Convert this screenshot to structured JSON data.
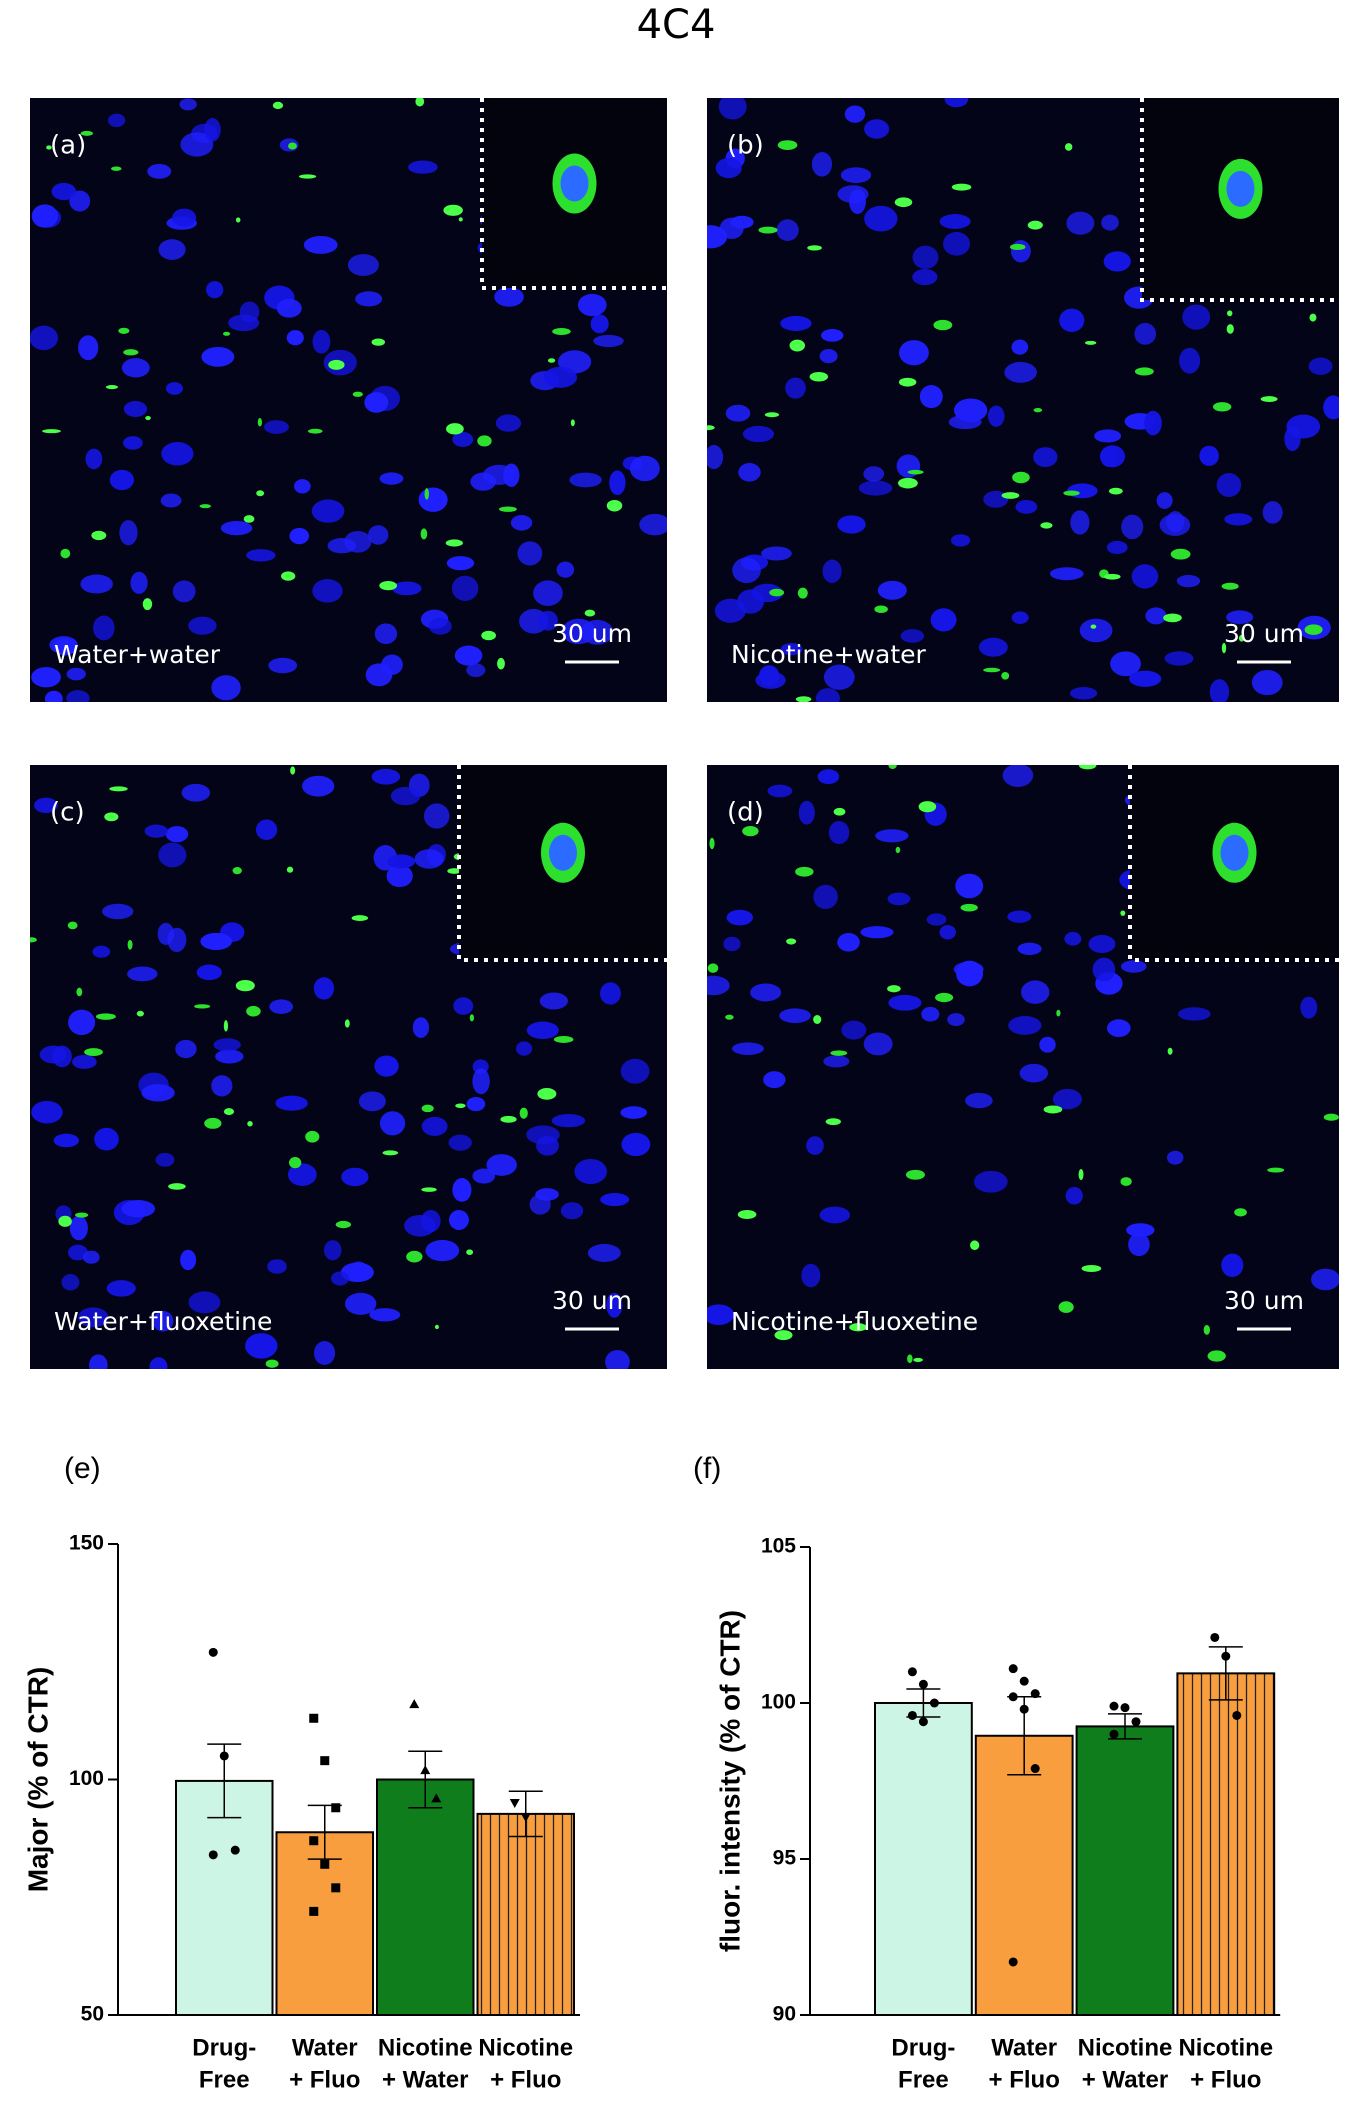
{
  "title": "4C4",
  "panels": [
    {
      "label": "(a)",
      "caption": "Water+water",
      "scale": "30 um"
    },
    {
      "label": "(b)",
      "caption": "Nicotine+water",
      "scale": "30 um"
    },
    {
      "label": "(c)",
      "caption": "Water+fluoxetine",
      "scale": "30 um"
    },
    {
      "label": "(d)",
      "caption": "Nicotine+fluoxetine",
      "scale": "30 um"
    }
  ],
  "chart_data": [
    {
      "type": "bar",
      "panel_label": "(e)",
      "y_label": "Major (% of CTR)",
      "categories": [
        [
          "Drug-",
          "Free"
        ],
        [
          "Water",
          "+ Fluo"
        ],
        [
          "Nicotine",
          "+ Water"
        ],
        [
          "Nicotine",
          "+ Fluo"
        ]
      ],
      "values": [
        99.7,
        88.8,
        100,
        92.7
      ],
      "errors": [
        7.8,
        5.7,
        6,
        4.8
      ],
      "points": [
        [
          127,
          105,
          85,
          84
        ],
        [
          113,
          104,
          94,
          87,
          82,
          77,
          72
        ],
        [
          116,
          102,
          96
        ],
        [
          95,
          92
        ]
      ],
      "point_markers": [
        "circle",
        "square",
        "triangle",
        "triangle-down"
      ],
      "colors": [
        "#cdf5e6",
        "#f99e3e",
        "#0f7d1c",
        "#f99e3e"
      ],
      "hatch": [
        false,
        false,
        false,
        true
      ],
      "ylim": [
        50,
        150
      ],
      "yticks": [
        50,
        100,
        150
      ]
    },
    {
      "type": "bar",
      "panel_label": "(f)",
      "y_label": "fluor. intensity (% of CTR)",
      "categories": [
        [
          "Drug-",
          "Free"
        ],
        [
          "Water",
          "+ Fluo"
        ],
        [
          "Nicotine",
          "+ Water"
        ],
        [
          "Nicotine",
          "+ Fluo"
        ]
      ],
      "values": [
        100,
        98.95,
        99.25,
        100.95
      ],
      "errors": [
        0.45,
        1.25,
        0.4,
        0.85
      ],
      "points": [
        [
          101,
          100.6,
          100,
          99.6,
          99.4
        ],
        [
          101.1,
          100.7,
          100.3,
          100.2,
          99.8,
          97.9,
          91.7
        ],
        [
          99.9,
          99.85,
          99.4,
          99
        ],
        [
          102.1,
          101.5,
          99.6
        ]
      ],
      "point_markers": [
        "circle",
        "circle",
        "circle",
        "circle"
      ],
      "colors": [
        "#cdf5e6",
        "#f99e3e",
        "#0f7d1c",
        "#f99e3e"
      ],
      "hatch": [
        false,
        false,
        false,
        true
      ],
      "ylim": [
        90,
        105
      ],
      "yticks": [
        90,
        95,
        100,
        105
      ]
    }
  ]
}
